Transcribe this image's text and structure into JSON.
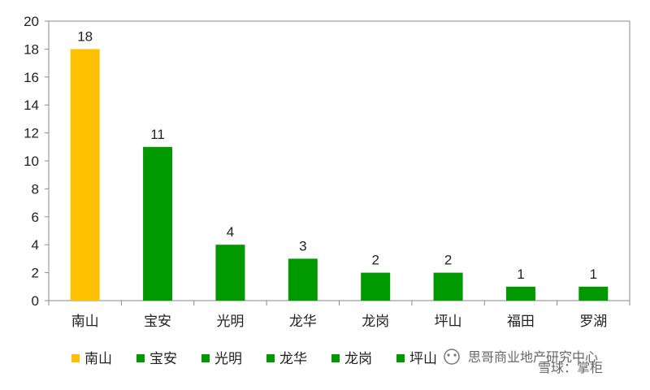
{
  "chart_data": {
    "type": "bar",
    "categories": [
      "南山",
      "宝安",
      "光明",
      "龙华",
      "龙岗",
      "坪山",
      "福田",
      "罗湖"
    ],
    "values": [
      18,
      11,
      4,
      3,
      2,
      2,
      1,
      1
    ],
    "bar_colors": [
      "#FFC000",
      "#009900",
      "#009900",
      "#009900",
      "#009900",
      "#009900",
      "#009900",
      "#009900"
    ],
    "ylim": [
      0,
      20
    ],
    "yticks": [
      0,
      2,
      4,
      6,
      8,
      10,
      12,
      14,
      16,
      18,
      20
    ],
    "grid": false,
    "legend_position": "bottom",
    "legend_entries": [
      "南山",
      "宝安",
      "光明",
      "龙华",
      "龙岗",
      "坪山"
    ],
    "title": "",
    "xlabel": "",
    "ylabel": ""
  },
  "watermark": {
    "text1": "思哥商业地产研究中心",
    "text2": "雪球：掌柜"
  }
}
